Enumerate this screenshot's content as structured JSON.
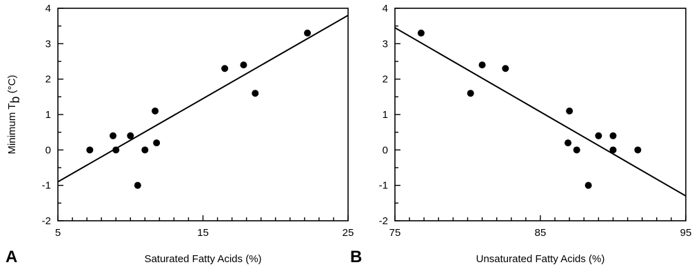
{
  "ylabel_main": "Minimum T",
  "ylabel_sub": "b",
  "ylabel_unit": " (°C)",
  "chart_data": [
    {
      "type": "scatter",
      "panel": "A",
      "xlabel": "Saturated Fatty Acids (%)",
      "ylabel": "Minimum Tb (°C)",
      "xlim": [
        5,
        25
      ],
      "ylim": [
        -2,
        4
      ],
      "xticks": [
        5,
        15,
        25
      ],
      "yticks": [
        -2,
        -1,
        0,
        1,
        2,
        3,
        4
      ],
      "points": [
        {
          "x": 7.2,
          "y": 0.0
        },
        {
          "x": 8.8,
          "y": 0.4
        },
        {
          "x": 9.0,
          "y": 0.0
        },
        {
          "x": 10.0,
          "y": 0.4
        },
        {
          "x": 10.5,
          "y": -1.0
        },
        {
          "x": 11.0,
          "y": 0.0
        },
        {
          "x": 11.7,
          "y": 1.1
        },
        {
          "x": 11.8,
          "y": 0.2
        },
        {
          "x": 16.5,
          "y": 2.3
        },
        {
          "x": 17.8,
          "y": 2.4
        },
        {
          "x": 18.6,
          "y": 1.6
        },
        {
          "x": 22.2,
          "y": 3.3
        }
      ],
      "fit_line": {
        "x": [
          5,
          25
        ],
        "y": [
          -0.9,
          3.8
        ]
      }
    },
    {
      "type": "scatter",
      "panel": "B",
      "xlabel": "Unsaturated Fatty Acids (%)",
      "ylabel": "",
      "xlim": [
        75,
        95
      ],
      "ylim": [
        -2,
        4
      ],
      "xticks": [
        75,
        85,
        95
      ],
      "yticks": [
        -2,
        -1,
        0,
        1,
        2,
        3,
        4
      ],
      "points": [
        {
          "x": 76.8,
          "y": 3.3
        },
        {
          "x": 80.2,
          "y": 1.6
        },
        {
          "x": 81.0,
          "y": 2.4
        },
        {
          "x": 82.6,
          "y": 2.3
        },
        {
          "x": 87.0,
          "y": 1.1
        },
        {
          "x": 86.9,
          "y": 0.2
        },
        {
          "x": 87.5,
          "y": 0.0
        },
        {
          "x": 88.3,
          "y": -1.0
        },
        {
          "x": 89.0,
          "y": 0.4
        },
        {
          "x": 90.0,
          "y": 0.4
        },
        {
          "x": 90.0,
          "y": 0.0
        },
        {
          "x": 91.7,
          "y": 0.0
        }
      ],
      "fit_line": {
        "x": [
          75,
          95
        ],
        "y": [
          3.45,
          -1.3
        ]
      }
    }
  ]
}
